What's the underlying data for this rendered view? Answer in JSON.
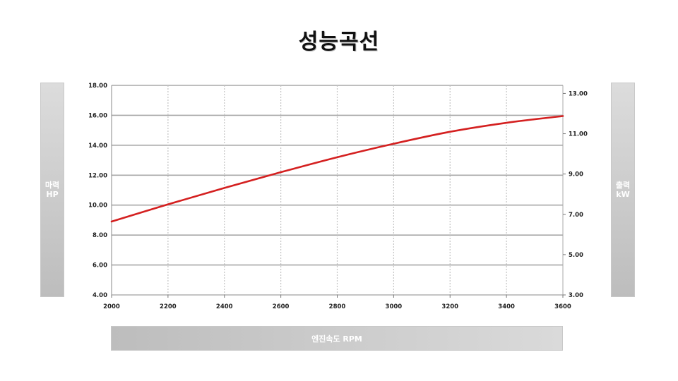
{
  "title": "성능곡선",
  "left_axis_box": {
    "line1": "마력",
    "line2": "HP"
  },
  "right_axis_box": {
    "line1": "출력",
    "line2": "kW"
  },
  "x_axis_box": {
    "label": "엔진속도 RPM"
  },
  "chart_data": {
    "type": "line",
    "title": "성능곡선",
    "xlabel": "엔진속도 RPM",
    "ylabel": "마력 HP",
    "y2label": "출력 kW",
    "x_ticks": [
      "2000",
      "2200",
      "2400",
      "2600",
      "2800",
      "3000",
      "3200",
      "3400",
      "3600"
    ],
    "y_ticks": [
      "4.00",
      "6.00",
      "8.00",
      "10.00",
      "12.00",
      "14.00",
      "16.00",
      "18.00"
    ],
    "y2_ticks": [
      "3.00",
      "5.00",
      "7.00",
      "9.00",
      "11.00",
      "13.00"
    ],
    "xlim": [
      2000,
      3600
    ],
    "ylim": [
      4,
      18
    ],
    "y2lim": [
      3,
      13.4
    ],
    "grid": true,
    "series": [
      {
        "color": "#d42020",
        "x": [
          2000,
          2200,
          2400,
          2600,
          2800,
          3000,
          3200,
          3400,
          3600
        ],
        "y": [
          8.9,
          10.05,
          11.15,
          12.2,
          13.2,
          14.1,
          14.9,
          15.5,
          15.95
        ]
      }
    ]
  }
}
